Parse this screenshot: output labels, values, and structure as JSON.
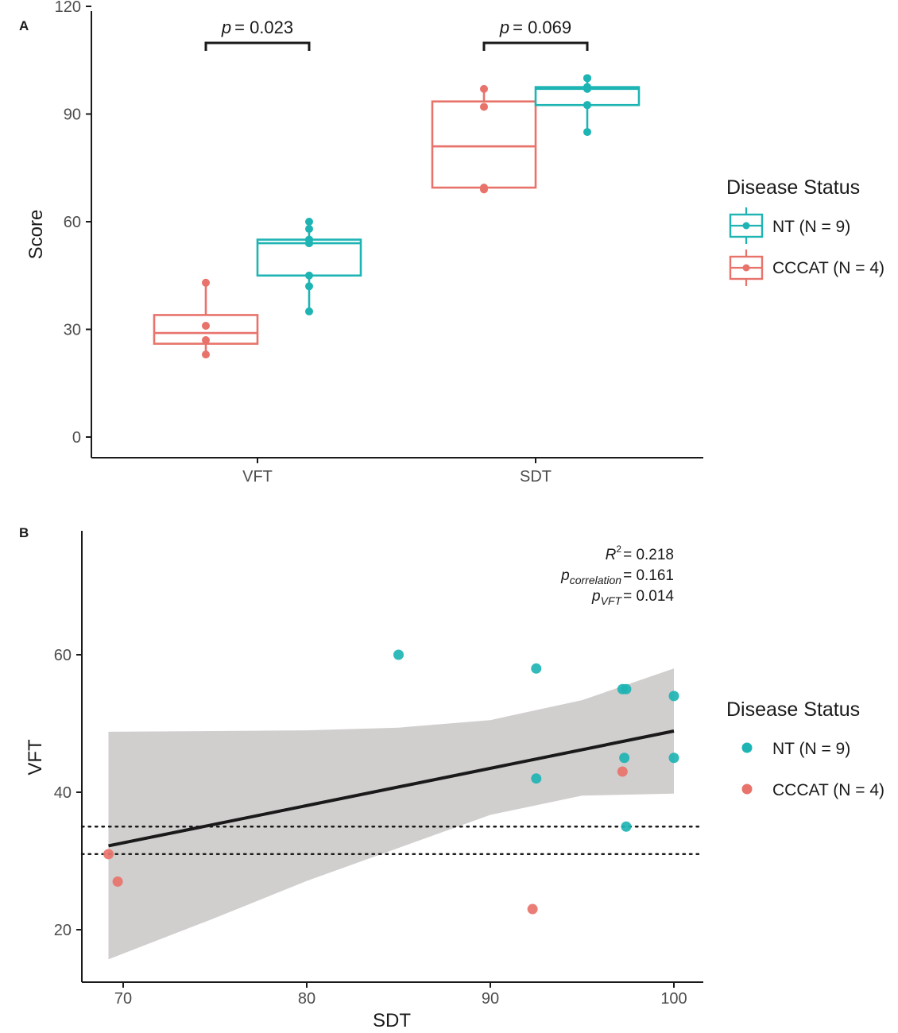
{
  "chart_data": [
    {
      "panel": "A",
      "type": "boxplot",
      "ylabel": "Score",
      "ylim": [
        -5,
        122
      ],
      "yticks": [
        "0",
        "30",
        "60",
        "90",
        "120"
      ],
      "categories": [
        "VFT",
        "SDT"
      ],
      "series": [
        {
          "name": "CCCAT (N = 4)",
          "color": "#E8736B",
          "boxes": [
            {
              "category": "VFT",
              "whisker_low": 23,
              "q1": 26,
              "median": 29,
              "q3": 34,
              "whisker_high": 43
            },
            {
              "category": "SDT",
              "whisker_low": 69,
              "q1": 69.5,
              "median": 81,
              "q3": 93.5,
              "whisker_high": 97
            }
          ],
          "points": {
            "VFT": [
              43,
              31,
              27,
              23
            ],
            "SDT": [
              97,
              92,
              69,
              69.5
            ]
          }
        },
        {
          "name": "NT (N = 9)",
          "color": "#1EB4B4",
          "boxes": [
            {
              "category": "VFT",
              "whisker_low": 35,
              "q1": 45,
              "median": 54,
              "q3": 55,
              "whisker_high": 60
            },
            {
              "category": "SDT",
              "whisker_low": 85,
              "q1": 92.5,
              "median": 97,
              "q3": 97.5,
              "whisker_high": 100
            }
          ],
          "points": {
            "VFT": [
              60,
              58,
              55,
              55,
              54,
              54,
              45,
              42,
              35
            ],
            "SDT": [
              100,
              100,
              97.5,
              97.5,
              97,
              92.5,
              92.5,
              92.5,
              85
            ]
          }
        }
      ],
      "annotations": [
        {
          "category": "VFT",
          "label": "p",
          "value": "= 0.023"
        },
        {
          "category": "SDT",
          "label": "p",
          "value": "= 0.069"
        }
      ],
      "legend": {
        "title": "Disease Status",
        "placement": "right"
      }
    },
    {
      "panel": "B",
      "type": "scatter",
      "xlabel": "SDT",
      "ylabel": "VFT",
      "xlim": [
        67.8,
        101.5
      ],
      "ylim": [
        12.5,
        80
      ],
      "xticks": [
        "70",
        "80",
        "90",
        "100"
      ],
      "yticks": [
        "20",
        "40",
        "60"
      ],
      "series": [
        {
          "name": "NT (N = 9)",
          "color": "#1EB4B4",
          "x": [
            85,
            92.5,
            97.2,
            97.4,
            100,
            97.3,
            92.5,
            100,
            97.4
          ],
          "y": [
            60,
            58,
            55,
            55,
            54,
            45,
            42,
            45,
            35
          ]
        },
        {
          "name": "CCCAT (N = 4)",
          "color": "#E8736B",
          "x": [
            69.2,
            69.7,
            92.3,
            97.2
          ],
          "y": [
            31,
            27,
            23,
            43
          ]
        }
      ],
      "regression": {
        "line": [
          [
            69.2,
            32.2
          ],
          [
            100,
            48.9
          ]
        ],
        "band_upper": [
          [
            69.2,
            48.8
          ],
          [
            75,
            48.9
          ],
          [
            80,
            49
          ],
          [
            85,
            49.4
          ],
          [
            90,
            50.5
          ],
          [
            95,
            53.4
          ],
          [
            100,
            58.0
          ]
        ],
        "band_lower": [
          [
            69.2,
            15.7
          ],
          [
            75,
            21.7
          ],
          [
            80,
            27.1
          ],
          [
            85,
            31.9
          ],
          [
            90,
            36.7
          ],
          [
            95,
            39.5
          ],
          [
            100,
            39.8
          ]
        ]
      },
      "reference_lines": [
        35,
        31
      ],
      "stats": {
        "r2_label": "R",
        "r2_sup": "2",
        "r2_value": "= 0.218",
        "pcorr_label": "p",
        "pcorr_sub": "correlation",
        "pcorr_value": "= 0.161",
        "pvft_label": "p",
        "pvft_sub": "VFT",
        "pvft_value": "= 0.014"
      },
      "legend": {
        "title": "Disease Status",
        "placement": "right"
      }
    }
  ],
  "colors": {
    "nt": "#1EB4B4",
    "cccat": "#E8736B",
    "band": "#C9C5C5",
    "line": "#1a1a1a"
  }
}
